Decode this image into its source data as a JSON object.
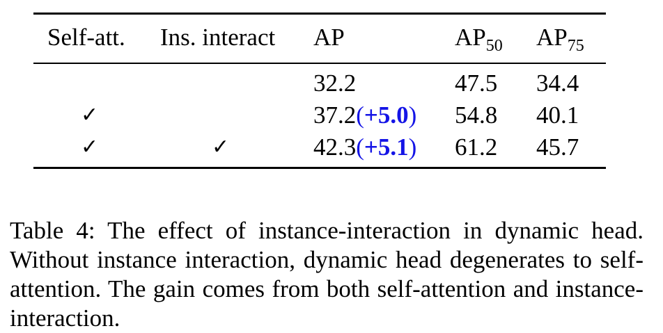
{
  "table": {
    "headers": {
      "self_att": "Self-att.",
      "ins_interact": "Ins. interact",
      "ap": "AP",
      "ap50_base": "AP",
      "ap50_sub": "50",
      "ap75_base": "AP",
      "ap75_sub": "75"
    },
    "check_mark": "✓",
    "rows": [
      {
        "self_att": false,
        "ins_interact": false,
        "ap": "32.2",
        "ap_gain_open": "",
        "ap_gain_value": "",
        "ap_gain_close": "",
        "ap50": "47.5",
        "ap75": "34.4"
      },
      {
        "self_att": true,
        "ins_interact": false,
        "ap": "37.2",
        "ap_gain_open": "(",
        "ap_gain_value": "+5.0",
        "ap_gain_close": ")",
        "ap50": "54.8",
        "ap75": "40.1"
      },
      {
        "self_att": true,
        "ins_interact": true,
        "ap": "42.3",
        "ap_gain_open": "(",
        "ap_gain_value": "+5.1",
        "ap_gain_close": ")",
        "ap50": "61.2",
        "ap75": "45.7"
      }
    ],
    "gain_color": "#1414e6"
  },
  "caption": "Table 4: The effect of instance-interaction in dynamic head. Without instance interaction, dynamic head degenerates to self-attention. The gain comes from both self-attention and instance-interaction."
}
